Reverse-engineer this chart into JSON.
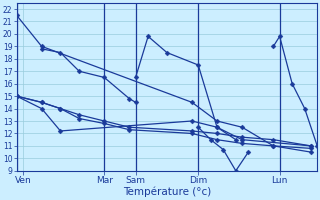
{
  "background_color": "#cceeff",
  "grid_color": "#99ccdd",
  "line_color": "#1a3a9a",
  "xlabel": "Température (°c)",
  "ylim": [
    9,
    22.5
  ],
  "xlim": [
    0,
    24
  ],
  "ytick_min": 9,
  "ytick_max": 22,
  "xtick_positions": [
    0.5,
    7,
    9.5,
    14.5,
    21
  ],
  "xtick_labels": [
    "Ven",
    "Mar",
    "Sam",
    "Dim",
    "Lun"
  ],
  "vlines": [
    0,
    7,
    9.5,
    14.5,
    21
  ],
  "series": [
    {
      "x": [
        0.0,
        2.0,
        14.0,
        16.0,
        18.0,
        20.5,
        23.5
      ],
      "y": [
        21.5,
        19.0,
        14.5,
        13.0,
        12.5,
        11.0,
        10.5
      ]
    },
    {
      "x": [
        0.0,
        2.0,
        3.5,
        14.0,
        16.0,
        18.0,
        23.5
      ],
      "y": [
        15.0,
        14.0,
        12.2,
        13.0,
        12.5,
        11.5,
        11.0
      ]
    },
    {
      "x": [
        0.0,
        2.0,
        3.5,
        5.0,
        7.0,
        9.0,
        14.0,
        16.0,
        18.0,
        20.5,
        23.5
      ],
      "y": [
        15.0,
        14.5,
        14.0,
        13.5,
        13.0,
        12.5,
        12.2,
        12.0,
        11.7,
        11.5,
        11.0
      ]
    },
    {
      "x": [
        0.0,
        2.0,
        3.5,
        5.0,
        7.0,
        9.0,
        14.0,
        16.0,
        18.0,
        20.5,
        23.5
      ],
      "y": [
        15.0,
        14.5,
        14.0,
        13.2,
        12.8,
        12.3,
        12.0,
        11.5,
        11.2,
        11.0,
        10.8
      ]
    },
    {
      "x": [
        2.0,
        3.5,
        5.0,
        7.0,
        9.0,
        9.5
      ],
      "y": [
        18.8,
        18.5,
        17.0,
        16.5,
        14.8,
        14.5
      ]
    },
    {
      "x": [
        9.5,
        10.5,
        12.0,
        14.5,
        16.0,
        17.5
      ],
      "y": [
        16.5,
        19.8,
        18.5,
        17.5,
        12.5,
        11.5
      ]
    },
    {
      "x": [
        14.5,
        15.5,
        16.5,
        17.5,
        18.5
      ],
      "y": [
        12.5,
        11.5,
        10.7,
        9.0,
        10.5
      ]
    },
    {
      "x": [
        20.5,
        21.0,
        22.0,
        23.0,
        24.0
      ],
      "y": [
        19.0,
        19.8,
        16.0,
        14.0,
        11.0
      ]
    }
  ]
}
